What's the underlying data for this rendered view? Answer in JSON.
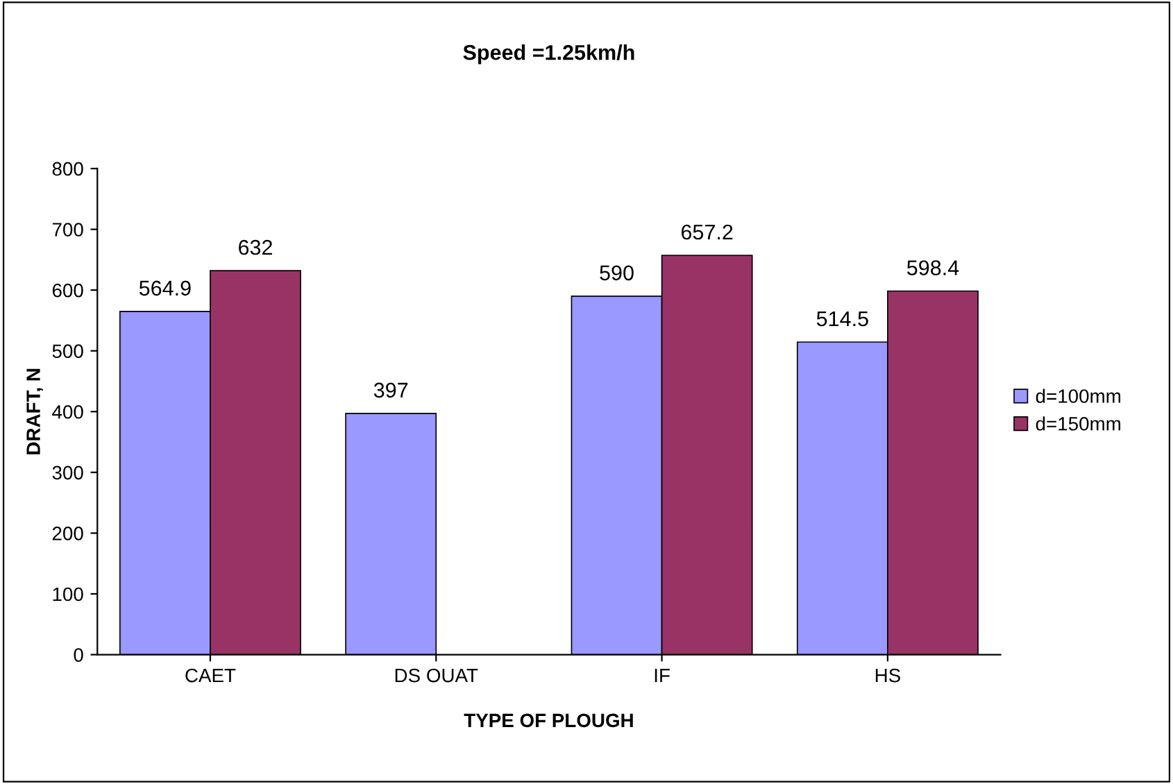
{
  "chart_data": {
    "type": "bar",
    "title": "Speed =1.25km/h",
    "xlabel": "TYPE OF PLOUGH",
    "ylabel": "DRAFT, N",
    "categories": [
      "CAET",
      "DS OUAT",
      "IF",
      "HS"
    ],
    "series": [
      {
        "name": "d=100mm",
        "color": "#9999ff",
        "values": [
          564.9,
          397,
          590,
          514.5
        ]
      },
      {
        "name": "d=150mm",
        "color": "#993366",
        "values": [
          632,
          null,
          657.2,
          598.4
        ]
      }
    ],
    "ylim": [
      0,
      800
    ],
    "yticks": [
      0,
      100,
      200,
      300,
      400,
      500,
      600,
      700,
      800
    ],
    "grid": false,
    "legend": "right",
    "data_labels": true
  }
}
